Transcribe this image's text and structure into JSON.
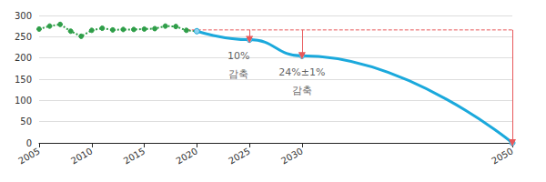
{
  "chart_data": {
    "type": "line",
    "xlim": [
      2005,
      2050
    ],
    "xticks": [
      2005,
      2010,
      2015,
      2020,
      2025,
      2030,
      2050
    ],
    "ylim": [
      0,
      300
    ],
    "yticks": [
      0,
      50,
      100,
      150,
      200,
      250,
      300
    ],
    "grid": true,
    "series": [
      {
        "color": "#2e9e48",
        "marker": "circle",
        "line_style": "dotted",
        "x": [
          2005,
          2006,
          2007,
          2008,
          2009,
          2010,
          2011,
          2012,
          2013,
          2014,
          2015,
          2016,
          2017,
          2018,
          2019,
          2020
        ],
        "values": [
          268,
          275,
          279,
          263,
          251,
          265,
          270,
          266,
          267,
          267,
          268,
          269,
          275,
          274,
          265,
          263
        ]
      },
      {
        "color": "#1ba9dc",
        "marker": "circle",
        "line_style": "solid",
        "x": [
          2020,
          2025,
          2030,
          2050
        ],
        "values": [
          263,
          243,
          205,
          0
        ]
      },
      {
        "color": "#e8585a",
        "marker": "none",
        "line_style": "dashed",
        "x": [
          2019,
          2050
        ],
        "values": [
          266,
          266
        ]
      }
    ],
    "annotations": [
      {
        "x": 2025,
        "y_from": 266,
        "y_to": 243,
        "text": "10%\n감축"
      },
      {
        "x": 2030,
        "y_from": 266,
        "y_to": 205,
        "text": "24%±1%\n감축"
      },
      {
        "x": 2050,
        "y_from": 266,
        "y_to": 0
      }
    ]
  }
}
